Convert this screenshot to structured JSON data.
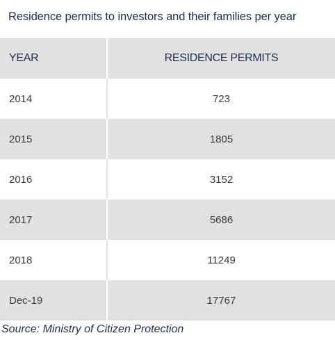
{
  "title": "Residence permits to investors and their families per year",
  "table": {
    "headers": {
      "year": "YEAR",
      "permits": "RESIDENCE PERMITS"
    },
    "rows": [
      {
        "year": "2014",
        "permits": "723"
      },
      {
        "year": "2015",
        "permits": "1805"
      },
      {
        "year": "2016",
        "permits": "3152"
      },
      {
        "year": "2017",
        "permits": "5686"
      },
      {
        "year": "2018",
        "permits": "11249"
      },
      {
        "year": "Dec-19",
        "permits": "17767"
      }
    ]
  },
  "source": "Source: Ministry of Citizen Protection",
  "colors": {
    "text": "#1c2f52",
    "shade": "#e1e1e2"
  }
}
